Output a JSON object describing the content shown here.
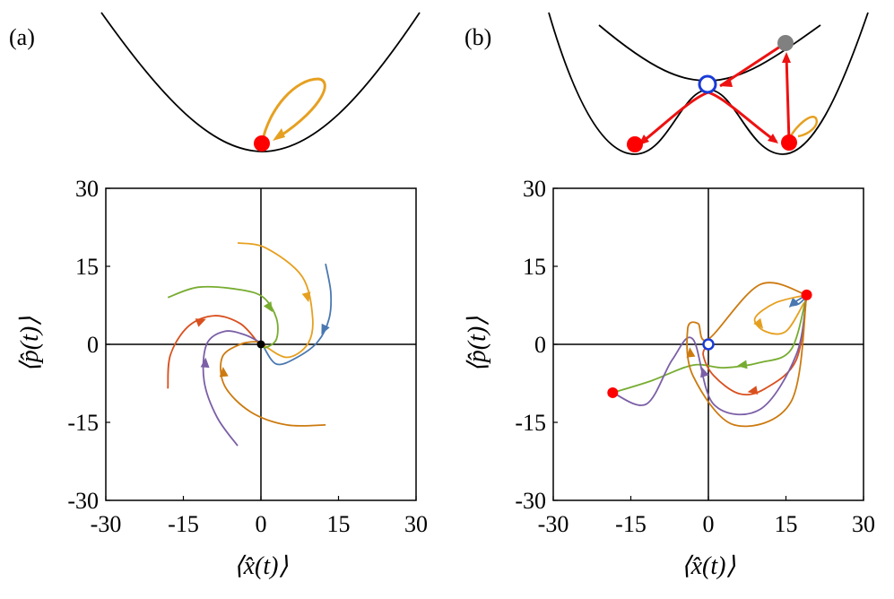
{
  "panels": [
    {
      "label": "(a)"
    },
    {
      "label": "(b)"
    }
  ],
  "axis_labels": {
    "x": "⟨x̂(t)⟩",
    "y": "⟨p̂(t)⟩"
  },
  "colors": {
    "axes": "#000000",
    "series": [
      "#4a78b0",
      "#d9501e",
      "#e6a020",
      "#7b5fa6",
      "#77ac30",
      "#cc7a10"
    ],
    "red_dot": "#ff0000",
    "gray_dot": "#808080",
    "blue_ring": "#1a3bd8",
    "potential_line": "#000000",
    "orange_loop": "#e6a020",
    "red_arrow": "#ee1111"
  },
  "chart_data": [
    {
      "type": "line",
      "panel": "(a)",
      "xlabel": "⟨x̂(t)⟩",
      "ylabel": "⟨p̂(t)⟩",
      "xlim": [
        -30,
        30
      ],
      "ylim": [
        -30,
        30
      ],
      "xticks": [
        "-30",
        "-15",
        "0",
        "15",
        "30"
      ],
      "yticks": [
        "30",
        "15",
        "0",
        "-15",
        "-30"
      ],
      "fixed_points": [
        {
          "x": 0,
          "y": 0,
          "color": "#000000"
        }
      ],
      "series": [
        {
          "color": "#4a78b0",
          "x": [
            12.5,
            13.5,
            13.2,
            11,
            7,
            3,
            0.4
          ],
          "y": [
            15.5,
            10,
            5,
            0.5,
            -2.5,
            -3.8,
            -0.3
          ]
        },
        {
          "color": "#d9501e",
          "x": [
            -18,
            -17.5,
            -14,
            -9,
            -4,
            -0.6
          ],
          "y": [
            -8.5,
            -2,
            3.5,
            5.5,
            4,
            0.4
          ]
        },
        {
          "color": "#e6a020",
          "x": [
            -4.5,
            1,
            8,
            10,
            9,
            5,
            0.3
          ],
          "y": [
            19.5,
            18.5,
            13,
            5,
            0,
            -2.5,
            0
          ]
        },
        {
          "color": "#7b5fa6",
          "x": [
            -4.5,
            -8.5,
            -11,
            -10.5,
            -7,
            -3,
            0.1
          ],
          "y": [
            -19.5,
            -14,
            -7,
            0,
            2.5,
            1.8,
            0.2
          ]
        },
        {
          "color": "#77ac30",
          "x": [
            -18,
            -12,
            -4,
            0.5,
            3,
            3,
            1,
            0.1
          ],
          "y": [
            9,
            11,
            10.5,
            9,
            5,
            1,
            -0.6,
            -0.1
          ]
        },
        {
          "color": "#cc7a10",
          "x": [
            12.5,
            5,
            -2,
            -7,
            -7.5,
            -4,
            -1,
            0
          ],
          "y": [
            -15.5,
            -15.5,
            -13,
            -8,
            -2.5,
            0,
            0.5,
            0
          ]
        }
      ]
    },
    {
      "type": "line",
      "panel": "(b)",
      "xlabel": "⟨x̂(t)⟩",
      "ylabel": "⟨p̂(t)⟩",
      "xlim": [
        -30,
        30
      ],
      "ylim": [
        -30,
        30
      ],
      "xticks": [
        "-30",
        "-15",
        "0",
        "15",
        "30"
      ],
      "yticks": [
        "30",
        "15",
        "0",
        "-15",
        "-30"
      ],
      "fixed_points": [
        {
          "x": -18.5,
          "y": -9.3,
          "color": "#ff0000",
          "kind": "stable"
        },
        {
          "x": 19,
          "y": 9.5,
          "color": "#ff0000",
          "kind": "stable"
        },
        {
          "x": 0,
          "y": 0,
          "color": "#1a3bd8",
          "kind": "saddle"
        }
      ],
      "series": [
        {
          "color": "#4a78b0",
          "x": [
            19,
            16.5,
            16,
            17.5,
            19
          ],
          "y": [
            9.5,
            8,
            7.5,
            7.8,
            9.2
          ]
        },
        {
          "color": "#e6a020",
          "x": [
            19,
            13,
            9,
            11,
            15,
            18.5
          ],
          "y": [
            9.5,
            8,
            5,
            2.5,
            2.5,
            8
          ]
        },
        {
          "color": "#77ac30",
          "x": [
            19,
            16,
            10,
            3,
            -3,
            -11,
            -18.5
          ],
          "y": [
            9.5,
            -1,
            -3.5,
            -4.5,
            -4,
            -7,
            -9.3
          ]
        },
        {
          "color": "#d9501e",
          "x": [
            19,
            17,
            11,
            6,
            1,
            -1,
            0
          ],
          "y": [
            9.5,
            -3,
            -8.5,
            -9.5,
            -6,
            -2,
            0
          ]
        },
        {
          "color": "#7b5fa6",
          "x": [
            19,
            17,
            10,
            1,
            -3,
            -7,
            -12,
            -18.5
          ],
          "y": [
            9.5,
            -2,
            -12.5,
            -11.5,
            1,
            -3,
            -11.5,
            -9.3
          ]
        },
        {
          "color": "#cc7a10",
          "x": [
            19,
            16,
            5,
            -3,
            -4,
            -2,
            0,
            10,
            19
          ],
          "y": [
            9.5,
            -11,
            -15.5,
            -6,
            3,
            4,
            1,
            11.5,
            9.5
          ]
        }
      ]
    }
  ]
}
